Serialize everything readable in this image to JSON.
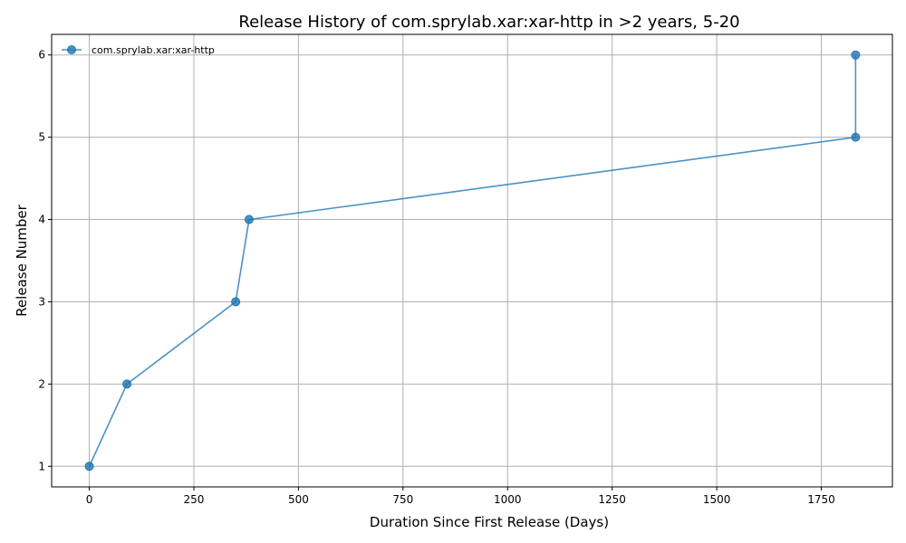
{
  "chart_data": {
    "type": "line",
    "title": "Release History of com.sprylab.xar:xar-http in >2 years, 5-20",
    "xlabel": "Duration Since First Release (Days)",
    "ylabel": "Release Number",
    "xlim": [
      -90,
      1920
    ],
    "ylim": [
      0.75,
      6.25
    ],
    "xticks": [
      0,
      250,
      500,
      750,
      1000,
      1250,
      1500,
      1750
    ],
    "yticks": [
      1,
      2,
      3,
      4,
      5,
      6
    ],
    "grid": true,
    "legend_position": "top-left",
    "series": [
      {
        "name": "com.sprylab.xar:xar-http",
        "color": "#1f77b4",
        "x": [
          0,
          90,
          350,
          382,
          1832,
          1832
        ],
        "y": [
          1,
          2,
          3,
          4,
          5,
          6
        ]
      }
    ]
  }
}
